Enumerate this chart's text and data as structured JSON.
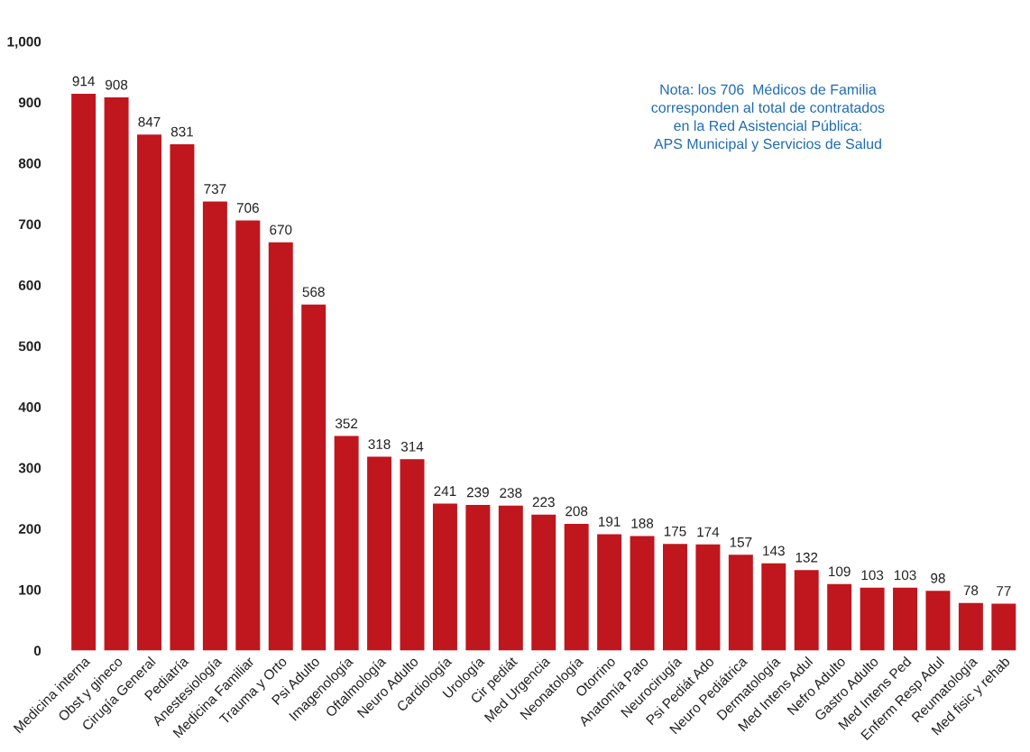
{
  "chart_data": {
    "type": "bar",
    "categories": [
      "Medicina interna",
      "Obst y gineco",
      "Cirugía General",
      "Pediatría",
      "Anestesiología",
      "Medicina Familiar",
      "Trauma y Orto",
      "Psi Adulto",
      "Imagenología",
      "Oftalmología",
      "Neuro Adulto",
      "Cardiología",
      "Urología",
      "Cir pediát",
      "Med Urgencia",
      "Neonatología",
      "Otorrino",
      "Anatomía Pato",
      "Neurocirugía",
      "Psi Pediát Ado",
      "Neuro Pediátrica",
      "Dermatología",
      "Med Intens Adul",
      "Nefro Adulto",
      "Gastro Adulto",
      "Med Intens Ped",
      "Enferm Resp Adul",
      "Reumatología",
      "Med fisic y rehab"
    ],
    "values": [
      914,
      908,
      847,
      831,
      737,
      706,
      670,
      568,
      352,
      318,
      314,
      241,
      239,
      238,
      223,
      208,
      191,
      188,
      175,
      174,
      157,
      143,
      132,
      109,
      103,
      103,
      98,
      78,
      77
    ],
    "color": "#c0161e",
    "ylim": [
      0,
      1000
    ],
    "yticks": [
      0,
      100,
      200,
      300,
      400,
      500,
      600,
      700,
      800,
      900,
      {
        "value": 1000,
        "label": "1,000"
      }
    ],
    "data_labels": true,
    "grid": false,
    "annotations": [
      "Nota: los 706  Médicos de Familia\ncorresponden al total de contratados\nen la Red Asistencial Pública:\nAPS Municipal y Servicios de Salud"
    ]
  }
}
